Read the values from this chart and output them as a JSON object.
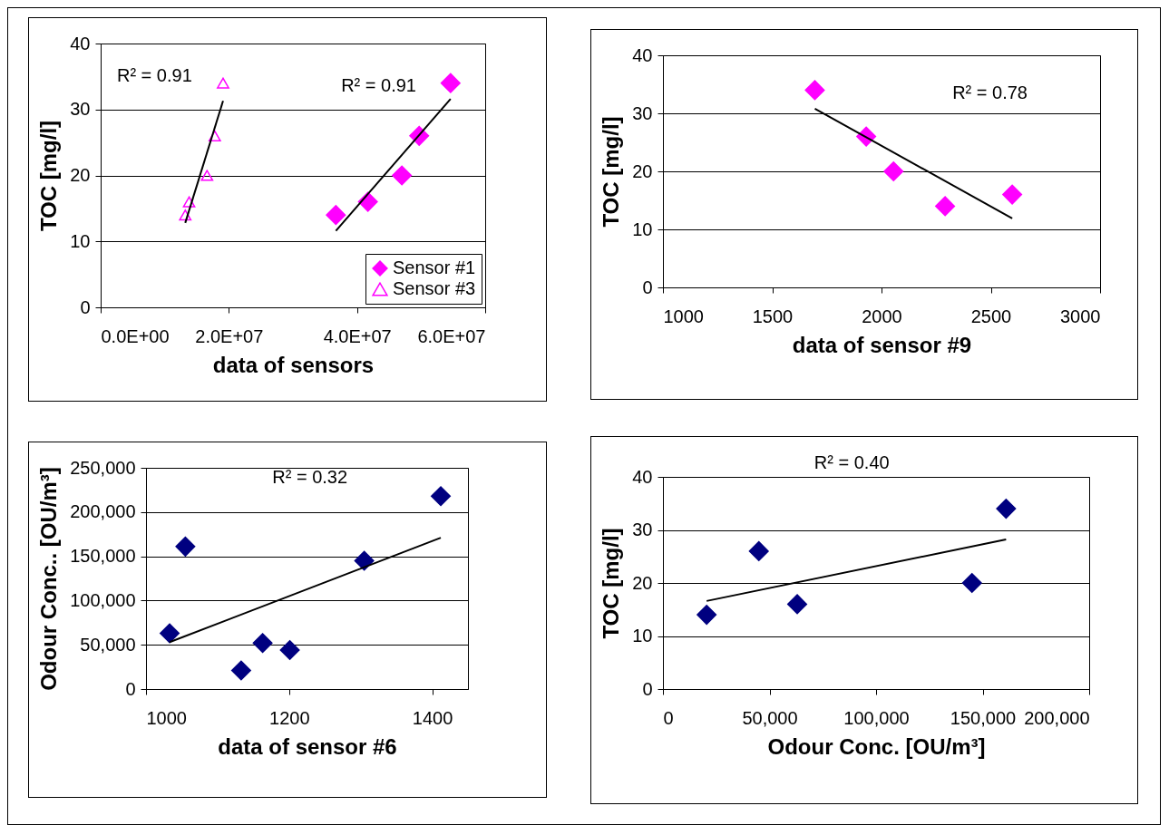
{
  "chart_data": [
    {
      "type": "scatter",
      "xlabel": "data of sensors",
      "ylabel": "TOC [mg/l]",
      "xlim": [
        0,
        60000000
      ],
      "xticks": [
        {
          "value": 0,
          "label": "0.0E+00"
        },
        {
          "value": 20000000,
          "label": "2.0E+07"
        },
        {
          "value": 40000000,
          "label": "4.0E+07"
        },
        {
          "value": 60000000,
          "label": "6.0E+07"
        }
      ],
      "ylim": [
        0,
        40
      ],
      "yticks": [
        0,
        10,
        20,
        30,
        40
      ],
      "grid": "y",
      "legend": "bottom right",
      "series": [
        {
          "name": "Sensor #1",
          "color": "#ff00ff",
          "marker": "diamond",
          "x": [
            36700000,
            41700000,
            47000000,
            49700000,
            54600000
          ],
          "values": [
            14,
            16,
            20,
            26,
            34
          ]
        },
        {
          "name": "Sensor #3",
          "color": "#ff00ff",
          "marker": "triangle",
          "x": [
            13200000,
            13800000,
            16600000,
            17800000,
            19100000
          ],
          "values": [
            14,
            16,
            20,
            26,
            34
          ]
        },
        {
          "type": "line",
          "color": "#000000",
          "x": [
            36700000,
            54600000
          ],
          "values": [
            11.6,
            31.6
          ]
        },
        {
          "type": "line",
          "color": "#000000",
          "x": [
            13200000,
            19100000
          ],
          "values": [
            12.8,
            31.3
          ]
        }
      ],
      "annotations": [
        "R² = 0.91",
        "R² = 0.91"
      ]
    },
    {
      "type": "scatter",
      "xlabel": "data of sensor #9",
      "ylabel": "TOC [mg/l]",
      "xlim": [
        1000,
        3000
      ],
      "xticks": [
        1000,
        1500,
        2000,
        2500,
        3000
      ],
      "ylim": [
        0,
        40
      ],
      "yticks": [
        0,
        10,
        20,
        30,
        40
      ],
      "grid": "y",
      "series": [
        {
          "color": "#ff00ff",
          "marker": "diamond",
          "x": [
            1695,
            1930,
            2055,
            2291,
            2598
          ],
          "values": [
            34,
            26,
            20,
            14,
            16
          ]
        },
        {
          "type": "line",
          "color": "#000000",
          "x": [
            1695,
            2598
          ],
          "values": [
            30.8,
            11.9
          ]
        }
      ],
      "annotations": [
        "R² = 0.78"
      ]
    },
    {
      "type": "scatter",
      "xlabel": "data of sensor #6",
      "ylabel": "Odour Conc.. [OU/m³]",
      "xlim": [
        1000,
        1450
      ],
      "xticks": [
        1000,
        1200,
        1400
      ],
      "ylim": [
        0,
        250000
      ],
      "yticks": [
        {
          "value": 0,
          "label": "0"
        },
        {
          "value": 50000,
          "label": "50,000"
        },
        {
          "value": 100000,
          "label": "100,000"
        },
        {
          "value": 150000,
          "label": "150,000"
        },
        {
          "value": 200000,
          "label": "200,000"
        },
        {
          "value": 250000,
          "label": "250,000"
        }
      ],
      "grid": "y",
      "series": [
        {
          "color": "#000080",
          "marker": "diamond",
          "x": [
            1033,
            1055,
            1133,
            1163,
            1201,
            1305,
            1412
          ],
          "values": [
            63000,
            161000,
            21000,
            52000,
            44000,
            145000,
            218000
          ]
        },
        {
          "type": "line",
          "color": "#000000",
          "x": [
            1033,
            1412
          ],
          "values": [
            53000,
            171000
          ]
        }
      ],
      "annotations": [
        "R² = 0.32"
      ]
    },
    {
      "type": "scatter",
      "xlabel": "Odour Conc. [OU/m³]",
      "ylabel": "TOC [mg/l]",
      "xlim": [
        0,
        200000
      ],
      "xticks": [
        {
          "value": 0,
          "label": "0"
        },
        {
          "value": 50000,
          "label": "50,000"
        },
        {
          "value": 100000,
          "label": "100,000"
        },
        {
          "value": 150000,
          "label": "150,000"
        },
        {
          "value": 200000,
          "label": "200,000"
        }
      ],
      "ylim": [
        0,
        40
      ],
      "yticks": [
        0,
        10,
        20,
        30,
        40
      ],
      "grid": "y",
      "series": [
        {
          "color": "#000080",
          "marker": "diamond",
          "x": [
            20500,
            45000,
            63000,
            145000,
            161000
          ],
          "values": [
            14,
            26,
            16,
            20,
            34
          ]
        },
        {
          "type": "line",
          "color": "#000000",
          "x": [
            20500,
            161000
          ],
          "values": [
            16.6,
            28.2
          ]
        }
      ],
      "annotations": [
        "R² = 0.40"
      ]
    }
  ]
}
